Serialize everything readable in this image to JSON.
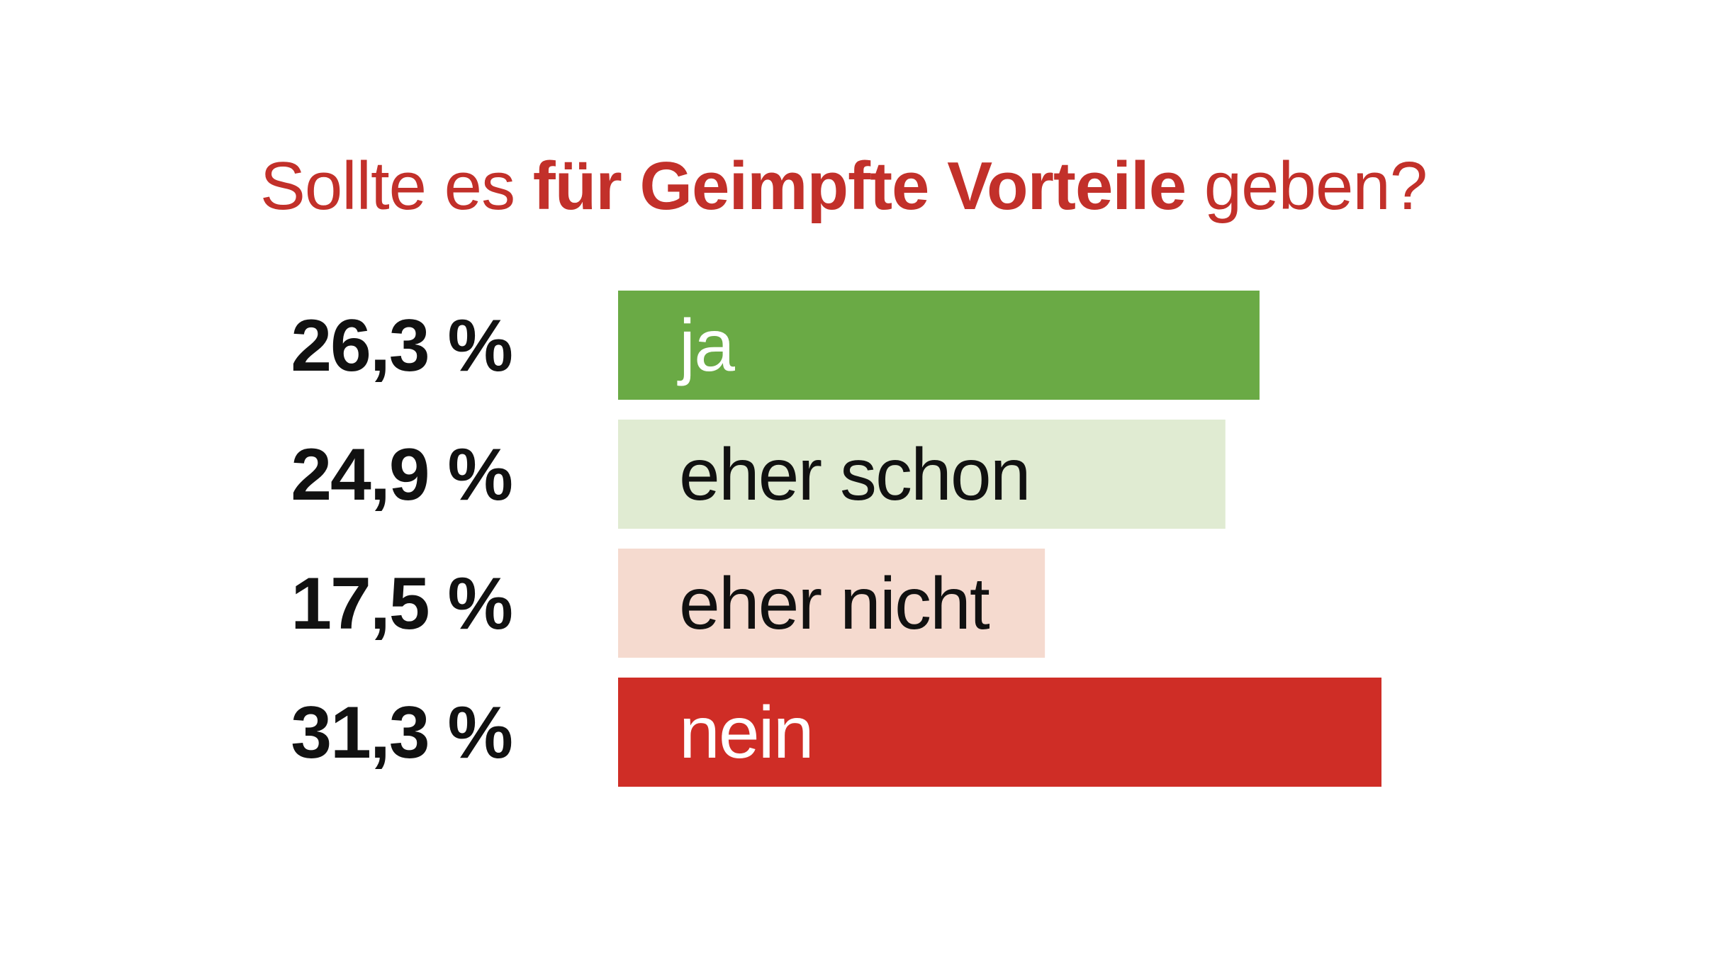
{
  "chart_data": {
    "type": "bar",
    "orientation": "horizontal",
    "title": {
      "part1": "Sollte es ",
      "part2_bold": "für Geimpfte Vorteile",
      "part3": " geben?"
    },
    "categories": [
      "ja",
      "eher schon",
      "eher nicht",
      "nein"
    ],
    "values": [
      26.3,
      24.9,
      17.5,
      31.3
    ],
    "value_labels": [
      "26,3 %",
      "24,9 %",
      "17,5 %",
      "31,3 %"
    ],
    "unit": "%",
    "bar_colors": [
      "#6aaa45",
      "#e0ebd2",
      "#f5dacf",
      "#cf2d26"
    ],
    "label_colors": [
      "#ffffff",
      "#111111",
      "#111111",
      "#ffffff"
    ],
    "title_color": "#c2302a",
    "value_color": "#111111",
    "grid": false,
    "legend": "none",
    "xlim": [
      0,
      31.3
    ]
  }
}
